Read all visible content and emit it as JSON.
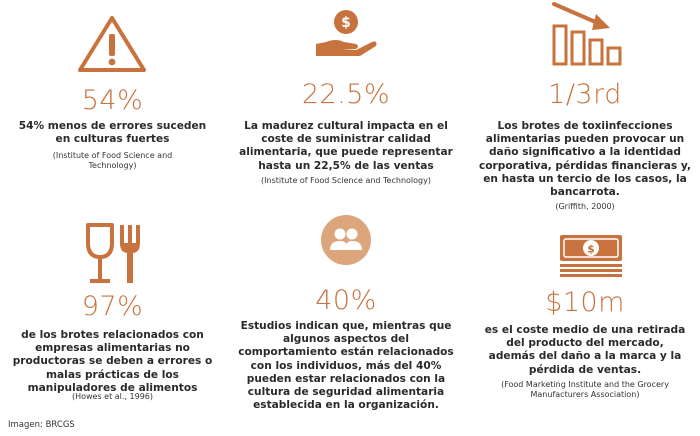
{
  "colors": {
    "accent": "#c8723e",
    "accent_light": "#dca57c",
    "text": "#2a2a2a"
  },
  "stats": [
    {
      "icon": "warning-triangle-icon",
      "value": "54%",
      "description": "54% menos de errores suceden\nen culturas fuertes",
      "source": "(Institute of Food Science and\nTechnology)"
    },
    {
      "icon": "hand-coin-icon",
      "value": "22.5%",
      "description": "La madurez cultural impacta en el\ncoste de suministrar calidad\nalimentaria, que puede representar\nhasta un 22,5% de las ventas",
      "source": "(Institute of Food Science and Technology)"
    },
    {
      "icon": "declining-chart-icon",
      "value": "1/3rd",
      "description": "Los brotes de toxiinfecciones\nalimentarias pueden provocar  un\ndaño significativo a la identidad\ncorporativa, pérdidas financieras y,\nen hasta un tercio de los casos, la\nbancarrota.",
      "source": "(Griffith, 2000)"
    },
    {
      "icon": "glass-fork-icon",
      "value": "97%",
      "description": "de los brotes relacionados con\nempresas alimentarias no\nproductoras se deben a errores o\nmalas prácticas de  los\nmanipuladores de alimentos",
      "source": "(Howes et al., 1996)"
    },
    {
      "icon": "people-group-icon",
      "value": "40%",
      "description": "Estudios indican que, mientras que\nalgunos aspectos del\ncomportamiento están relacionados\ncon los individuos, más del 40%\npueden estar relacionados con la\ncultura de seguridad alimentaria\nestablecida en la organización.",
      "source": ""
    },
    {
      "icon": "money-stack-icon",
      "value": "$10m",
      "description": "es el coste medio de una retirada\ndel producto del mercado,\nademás del daño a la marca y la\npérdida de ventas.",
      "source": "(Food Marketing Institute and the Grocery\nManufacturers Association)"
    }
  ],
  "credit": "Imagen: BRCGS"
}
